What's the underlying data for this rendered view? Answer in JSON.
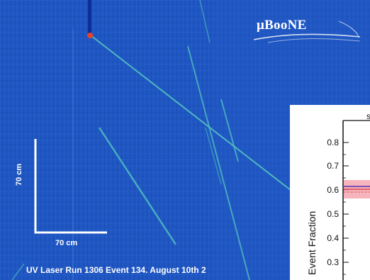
{
  "logo": {
    "text": "μBooNE"
  },
  "scale_bar": {
    "vertical_label": "70 cm",
    "horizontal_label": "70 cm"
  },
  "caption": "UV Laser Run 1306 Event 134. August 10th 2",
  "inset_plot": {
    "ylabel": "Event Fraction",
    "y_ticks": [
      "0.8",
      "0.7",
      "0.6",
      "0.5",
      "0.4",
      "0.3"
    ]
  },
  "colors": {
    "background": "#1f56c2",
    "track": "#57c9c0",
    "marker": "#e8422b",
    "band": "#f5a8b2"
  }
}
